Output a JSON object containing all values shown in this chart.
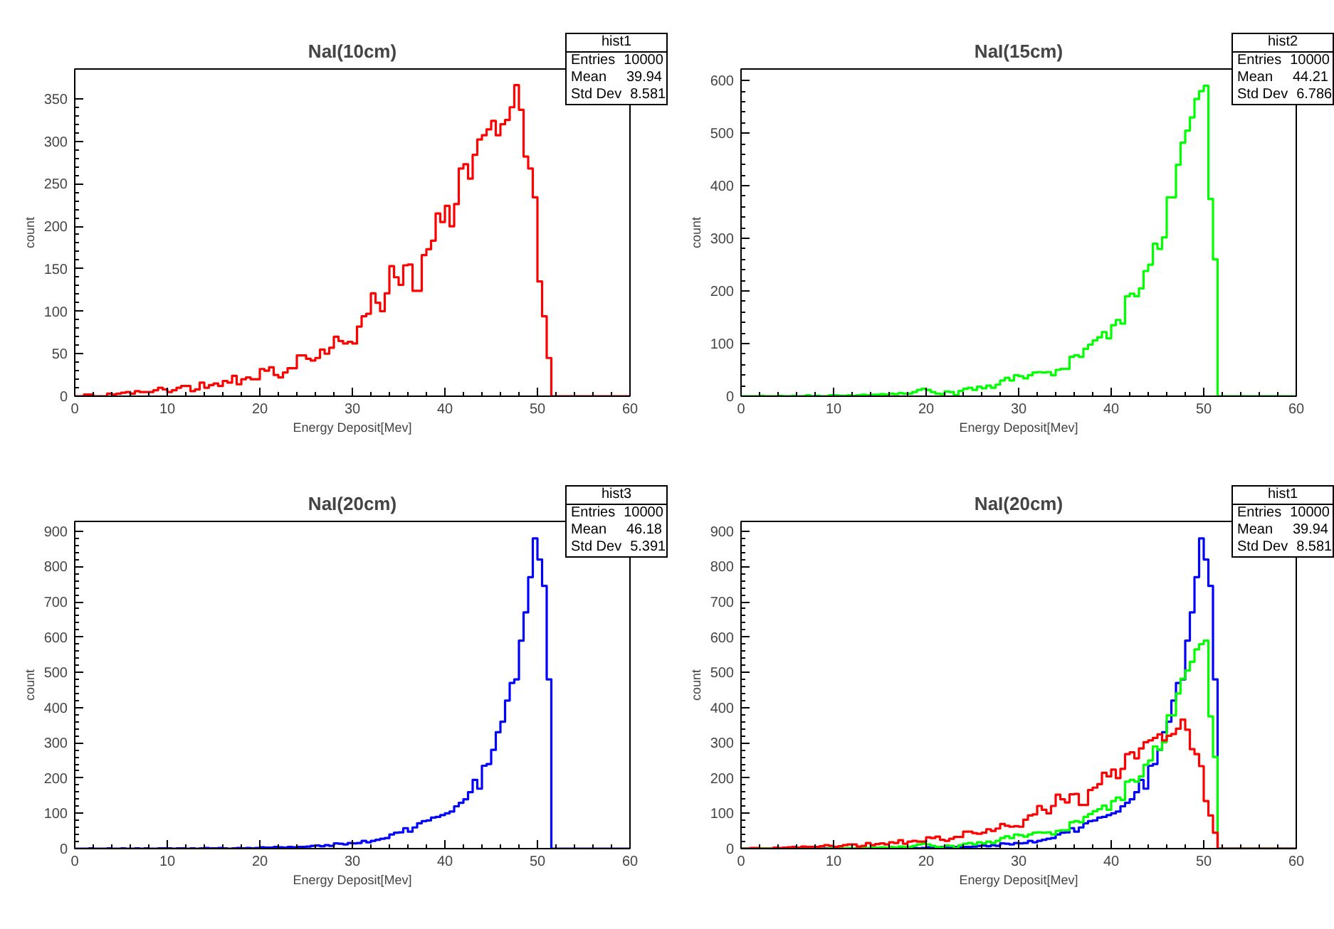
{
  "chart_data": [
    {
      "type": "histogram",
      "title": "NaI(10cm)",
      "xlabel": "Energy Deposit[Mev]",
      "ylabel": "count",
      "xlim": [
        0,
        60
      ],
      "ylim": [
        0,
        385
      ],
      "xticks": [
        0,
        10,
        20,
        30,
        40,
        50,
        60
      ],
      "yticks": [
        0,
        50,
        100,
        150,
        200,
        250,
        300,
        350
      ],
      "annotations": [
        "hist1",
        "Entries",
        "10000",
        "Mean",
        "39.94",
        "Std Dev",
        "8.581"
      ],
      "bins": [
        0,
        0.5,
        1,
        1.5,
        2,
        2.5,
        3,
        3.5,
        4,
        4.5,
        5,
        5.5,
        6,
        6.5,
        7,
        7.5,
        8,
        8.5,
        9,
        9.5,
        10,
        10.5,
        11,
        11.5,
        12,
        12.5,
        13,
        13.5,
        14,
        14.5,
        15,
        15.5,
        16,
        16.5,
        17,
        17.5,
        18,
        18.5,
        19,
        19.5,
        20,
        20.5,
        21,
        21.5,
        22,
        22.5,
        23,
        23.5,
        24,
        24.5,
        25,
        25.5,
        26,
        26.5,
        27,
        27.5,
        28,
        28.5,
        29,
        29.5,
        30,
        30.5,
        31,
        31.5,
        32,
        32.5,
        33,
        33.5,
        34,
        34.5,
        35,
        35.5,
        36,
        36.5,
        37,
        37.5,
        38,
        38.5,
        39,
        39.5,
        40,
        40.5,
        41,
        41.5,
        42,
        42.5,
        43,
        43.5,
        44,
        44.5,
        45,
        45.5,
        46,
        46.5,
        47,
        47.5,
        48,
        48.5,
        49,
        49.5,
        50,
        50.5,
        51,
        51.5,
        52,
        52.5,
        53,
        53.5,
        54,
        54.5,
        55,
        55.5,
        56,
        56.5,
        57,
        57.5,
        58,
        58.5,
        59,
        59.5,
        60
      ],
      "series": [
        {
          "color": "#ff0000",
          "values": [
            0,
            0,
            2,
            2,
            0,
            0,
            0,
            3,
            2,
            3,
            4,
            5,
            3,
            6,
            5,
            5,
            5,
            7,
            10,
            8,
            5,
            7,
            10,
            12,
            12,
            6,
            8,
            16,
            10,
            13,
            15,
            12,
            18,
            16,
            24,
            14,
            20,
            22,
            20,
            20,
            32,
            30,
            34,
            25,
            22,
            28,
            33,
            33,
            48,
            48,
            44,
            42,
            45,
            55,
            50,
            57,
            70,
            65,
            62,
            64,
            62,
            82,
            94,
            97,
            121,
            110,
            100,
            121,
            153,
            140,
            131,
            154,
            155,
            124,
            124,
            166,
            173,
            183,
            215,
            205,
            224,
            200,
            226,
            268,
            273,
            256,
            284,
            302,
            307,
            314,
            324,
            307,
            320,
            325,
            340,
            366,
            337,
            282,
            268,
            234,
            135,
            94,
            45,
            0,
            0,
            0,
            0,
            0,
            0,
            0,
            0,
            0,
            0,
            0,
            0,
            0,
            0,
            0,
            0,
            0
          ]
        }
      ]
    },
    {
      "type": "histogram",
      "title": "NaI(15cm)",
      "xlabel": "Energy Deposit[Mev]",
      "ylabel": "count",
      "xlim": [
        0,
        60
      ],
      "ylim": [
        0,
        622
      ],
      "xticks": [
        0,
        10,
        20,
        30,
        40,
        50,
        60
      ],
      "yticks": [
        0,
        100,
        200,
        300,
        400,
        500,
        600
      ],
      "annotations": [
        "hist2",
        "Entries",
        "10000",
        "Mean",
        "44.21",
        "Std Dev",
        "6.786"
      ],
      "bins": [
        0,
        0.5,
        1,
        1.5,
        2,
        2.5,
        3,
        3.5,
        4,
        4.5,
        5,
        5.5,
        6,
        6.5,
        7,
        7.5,
        8,
        8.5,
        9,
        9.5,
        10,
        10.5,
        11,
        11.5,
        12,
        12.5,
        13,
        13.5,
        14,
        14.5,
        15,
        15.5,
        16,
        16.5,
        17,
        17.5,
        18,
        18.5,
        19,
        19.5,
        20,
        20.5,
        21,
        21.5,
        22,
        22.5,
        23,
        23.5,
        24,
        24.5,
        25,
        25.5,
        26,
        26.5,
        27,
        27.5,
        28,
        28.5,
        29,
        29.5,
        30,
        30.5,
        31,
        31.5,
        32,
        32.5,
        33,
        33.5,
        34,
        34.5,
        35,
        35.5,
        36,
        36.5,
        37,
        37.5,
        38,
        38.5,
        39,
        39.5,
        40,
        40.5,
        41,
        41.5,
        42,
        42.5,
        43,
        43.5,
        44,
        44.5,
        45,
        45.5,
        46,
        46.5,
        47,
        47.5,
        48,
        48.5,
        49,
        49.5,
        50,
        50.5,
        51,
        51.5,
        52,
        52.5,
        53,
        53.5,
        54,
        54.5,
        55,
        55.5,
        56,
        56.5,
        57,
        57.5,
        58,
        58.5,
        59,
        59.5,
        60
      ],
      "series": [
        {
          "color": "#00ff00",
          "values": [
            0,
            0,
            0,
            0,
            1,
            0,
            0,
            0,
            1,
            0,
            0,
            1,
            0,
            0,
            2,
            0,
            1,
            0,
            0,
            2,
            2,
            1,
            1,
            2,
            1,
            2,
            3,
            2,
            3,
            3,
            4,
            3,
            5,
            4,
            6,
            5,
            5,
            8,
            12,
            14,
            12,
            8,
            5,
            4,
            9,
            8,
            2,
            10,
            14,
            16,
            12,
            18,
            15,
            20,
            16,
            22,
            30,
            35,
            30,
            40,
            38,
            34,
            40,
            45,
            46,
            45,
            46,
            40,
            50,
            52,
            52,
            75,
            78,
            75,
            90,
            98,
            106,
            112,
            122,
            110,
            135,
            145,
            138,
            190,
            195,
            190,
            205,
            238,
            250,
            290,
            280,
            302,
            378,
            378,
            440,
            482,
            505,
            530,
            565,
            580,
            590,
            375,
            260,
            0,
            0,
            0,
            0,
            0,
            0,
            0,
            0,
            0,
            0,
            0,
            0,
            0,
            0,
            0,
            0,
            0
          ]
        }
      ]
    },
    {
      "type": "histogram",
      "title": "NaI(20cm)",
      "xlabel": "Energy Deposit[Mev]",
      "ylabel": "count",
      "xlim": [
        0,
        60
      ],
      "ylim": [
        0,
        928
      ],
      "xticks": [
        0,
        10,
        20,
        30,
        40,
        50,
        60
      ],
      "yticks": [
        0,
        100,
        200,
        300,
        400,
        500,
        600,
        700,
        800,
        900
      ],
      "annotations": [
        "hist3",
        "Entries",
        "10000",
        "Mean",
        "46.18",
        "Std Dev",
        "5.391"
      ],
      "bins": [
        0,
        0.5,
        1,
        1.5,
        2,
        2.5,
        3,
        3.5,
        4,
        4.5,
        5,
        5.5,
        6,
        6.5,
        7,
        7.5,
        8,
        8.5,
        9,
        9.5,
        10,
        10.5,
        11,
        11.5,
        12,
        12.5,
        13,
        13.5,
        14,
        14.5,
        15,
        15.5,
        16,
        16.5,
        17,
        17.5,
        18,
        18.5,
        19,
        19.5,
        20,
        20.5,
        21,
        21.5,
        22,
        22.5,
        23,
        23.5,
        24,
        24.5,
        25,
        25.5,
        26,
        26.5,
        27,
        27.5,
        28,
        28.5,
        29,
        29.5,
        30,
        30.5,
        31,
        31.5,
        32,
        32.5,
        33,
        33.5,
        34,
        34.5,
        35,
        35.5,
        36,
        36.5,
        37,
        37.5,
        38,
        38.5,
        39,
        39.5,
        40,
        40.5,
        41,
        41.5,
        42,
        42.5,
        43,
        43.5,
        44,
        44.5,
        45,
        45.5,
        46,
        46.5,
        47,
        47.5,
        48,
        48.5,
        49,
        49.5,
        50,
        50.5,
        51,
        51.5,
        52,
        52.5,
        53,
        53.5,
        54,
        54.5,
        55,
        55.5,
        56,
        56.5,
        57,
        57.5,
        58,
        58.5,
        59,
        59.5,
        60
      ],
      "series": [
        {
          "color": "#0000ff",
          "values": [
            0,
            0,
            0,
            1,
            0,
            0,
            0,
            1,
            0,
            0,
            1,
            0,
            0,
            1,
            0,
            1,
            0,
            0,
            1,
            1,
            1,
            0,
            1,
            1,
            0,
            1,
            0,
            1,
            2,
            1,
            1,
            2,
            1,
            0,
            1,
            2,
            1,
            2,
            1,
            2,
            4,
            3,
            3,
            5,
            4,
            3,
            5,
            4,
            5,
            5,
            6,
            8,
            9,
            7,
            10,
            8,
            15,
            14,
            12,
            16,
            15,
            16,
            22,
            18,
            22,
            25,
            28,
            30,
            40,
            45,
            46,
            58,
            48,
            60,
            72,
            78,
            80,
            88,
            90,
            95,
            100,
            105,
            120,
            130,
            140,
            160,
            195,
            170,
            235,
            240,
            280,
            330,
            360,
            420,
            470,
            480,
            590,
            670,
            770,
            880,
            820,
            745,
            480,
            0,
            0,
            0,
            0,
            0,
            0,
            0,
            0,
            0,
            0,
            0,
            0,
            0,
            0,
            0,
            0,
            0
          ]
        }
      ]
    },
    {
      "type": "histogram",
      "title": "NaI(20cm)",
      "xlabel": "Energy Deposit[Mev]",
      "ylabel": "count",
      "xlim": [
        0,
        60
      ],
      "ylim": [
        0,
        928
      ],
      "xticks": [
        0,
        10,
        20,
        30,
        40,
        50,
        60
      ],
      "yticks": [
        0,
        100,
        200,
        300,
        400,
        500,
        600,
        700,
        800,
        900
      ],
      "annotations": [
        "hist1",
        "Entries",
        "10000",
        "Mean",
        "39.94",
        "Std Dev",
        "8.581"
      ],
      "bins": [
        0,
        0.5,
        1,
        1.5,
        2,
        2.5,
        3,
        3.5,
        4,
        4.5,
        5,
        5.5,
        6,
        6.5,
        7,
        7.5,
        8,
        8.5,
        9,
        9.5,
        10,
        10.5,
        11,
        11.5,
        12,
        12.5,
        13,
        13.5,
        14,
        14.5,
        15,
        15.5,
        16,
        16.5,
        17,
        17.5,
        18,
        18.5,
        19,
        19.5,
        20,
        20.5,
        21,
        21.5,
        22,
        22.5,
        23,
        23.5,
        24,
        24.5,
        25,
        25.5,
        26,
        26.5,
        27,
        27.5,
        28,
        28.5,
        29,
        29.5,
        30,
        30.5,
        31,
        31.5,
        32,
        32.5,
        33,
        33.5,
        34,
        34.5,
        35,
        35.5,
        36,
        36.5,
        37,
        37.5,
        38,
        38.5,
        39,
        39.5,
        40,
        40.5,
        41,
        41.5,
        42,
        42.5,
        43,
        43.5,
        44,
        44.5,
        45,
        45.5,
        46,
        46.5,
        47,
        47.5,
        48,
        48.5,
        49,
        49.5,
        50,
        50.5,
        51,
        51.5,
        52,
        52.5,
        53,
        53.5,
        54,
        54.5,
        55,
        55.5,
        56,
        56.5,
        57,
        57.5,
        58,
        58.5,
        59,
        59.5,
        60
      ],
      "series": [
        {
          "color": "#0000ff",
          "values": [
            0,
            0,
            0,
            1,
            0,
            0,
            0,
            1,
            0,
            0,
            1,
            0,
            0,
            1,
            0,
            1,
            0,
            0,
            1,
            1,
            1,
            0,
            1,
            1,
            0,
            1,
            0,
            1,
            2,
            1,
            1,
            2,
            1,
            0,
            1,
            2,
            1,
            2,
            1,
            2,
            4,
            3,
            3,
            5,
            4,
            3,
            5,
            4,
            5,
            5,
            6,
            8,
            9,
            7,
            10,
            8,
            15,
            14,
            12,
            16,
            15,
            16,
            22,
            18,
            22,
            25,
            28,
            30,
            40,
            45,
            46,
            58,
            48,
            60,
            72,
            78,
            80,
            88,
            90,
            95,
            100,
            105,
            120,
            130,
            140,
            160,
            195,
            170,
            235,
            240,
            280,
            330,
            360,
            420,
            470,
            480,
            590,
            670,
            770,
            880,
            820,
            745,
            480,
            0,
            0,
            0,
            0,
            0,
            0,
            0,
            0,
            0,
            0,
            0,
            0,
            0,
            0,
            0,
            0,
            0
          ]
        },
        {
          "color": "#00ff00",
          "values": [
            0,
            0,
            0,
            0,
            1,
            0,
            0,
            0,
            1,
            0,
            0,
            1,
            0,
            0,
            2,
            0,
            1,
            0,
            0,
            2,
            2,
            1,
            1,
            2,
            1,
            2,
            3,
            2,
            3,
            3,
            4,
            3,
            5,
            4,
            6,
            5,
            5,
            8,
            12,
            14,
            12,
            8,
            5,
            4,
            9,
            8,
            2,
            10,
            14,
            16,
            12,
            18,
            15,
            20,
            16,
            22,
            30,
            35,
            30,
            40,
            38,
            34,
            40,
            45,
            46,
            45,
            46,
            40,
            50,
            52,
            52,
            75,
            78,
            75,
            90,
            98,
            106,
            112,
            122,
            110,
            135,
            145,
            138,
            190,
            195,
            190,
            205,
            238,
            250,
            290,
            280,
            302,
            378,
            378,
            440,
            482,
            505,
            530,
            565,
            580,
            590,
            375,
            260,
            0,
            0,
            0,
            0,
            0,
            0,
            0,
            0,
            0,
            0,
            0,
            0,
            0,
            0,
            0,
            0,
            0
          ]
        },
        {
          "color": "#ff0000",
          "values": [
            0,
            0,
            2,
            2,
            0,
            0,
            0,
            3,
            2,
            3,
            4,
            5,
            3,
            6,
            5,
            5,
            5,
            7,
            10,
            8,
            5,
            7,
            10,
            12,
            12,
            6,
            8,
            16,
            10,
            13,
            15,
            12,
            18,
            16,
            24,
            14,
            20,
            22,
            20,
            20,
            32,
            30,
            34,
            25,
            22,
            28,
            33,
            33,
            48,
            48,
            44,
            42,
            45,
            55,
            50,
            57,
            70,
            65,
            62,
            64,
            62,
            82,
            94,
            97,
            121,
            110,
            100,
            121,
            153,
            140,
            131,
            154,
            155,
            124,
            124,
            166,
            173,
            183,
            215,
            205,
            224,
            200,
            226,
            268,
            273,
            256,
            284,
            302,
            307,
            314,
            324,
            307,
            320,
            325,
            340,
            366,
            337,
            282,
            268,
            234,
            135,
            94,
            45,
            0,
            0,
            0,
            0,
            0,
            0,
            0,
            0,
            0,
            0,
            0,
            0,
            0,
            0,
            0,
            0,
            0
          ]
        }
      ]
    }
  ]
}
